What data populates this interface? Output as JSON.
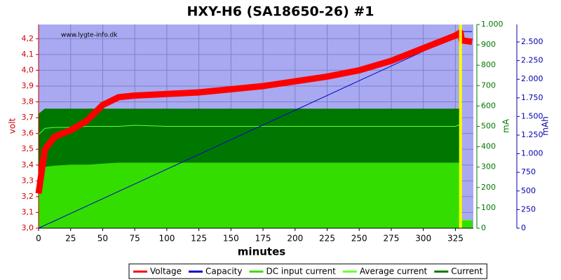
{
  "chart_data": {
    "type": "line",
    "title": "HXY-H6 (SA18650-26) #1",
    "watermark": "www.lygte-info.dk",
    "xlabel": "minutes",
    "ylabel": "volt",
    "y2label": "mA",
    "y3label": "mAh",
    "x": [
      0,
      5,
      12.5,
      25,
      37.5,
      50,
      62.5,
      75,
      100,
      125,
      150,
      175,
      200,
      225,
      250,
      275,
      300,
      325,
      329,
      330,
      338
    ],
    "series": [
      {
        "name": "Current",
        "color": "#007700",
        "axis": "y2",
        "style": "area",
        "values": [
          560,
          585,
          585,
          585,
          585,
          585,
          585,
          585,
          585,
          585,
          585,
          585,
          585,
          585,
          585,
          585,
          585,
          585,
          585,
          30,
          30
        ]
      },
      {
        "name": "DC input current",
        "color": "#33dd00",
        "axis": "y2",
        "style": "area",
        "values": [
          250,
          300,
          305,
          310,
          310,
          315,
          320,
          320,
          320,
          320,
          320,
          320,
          320,
          320,
          320,
          320,
          320,
          320,
          320,
          40,
          40
        ]
      },
      {
        "name": "Average current",
        "color": "#66ff33",
        "axis": "y2",
        "style": "line",
        "values": [
          460,
          490,
          495,
          495,
          500,
          500,
          500,
          505,
          500,
          500,
          500,
          500,
          500,
          500,
          500,
          500,
          500,
          500,
          510,
          40,
          40
        ]
      },
      {
        "name": "Capacity",
        "color": "#0000cc",
        "axis": "y3",
        "style": "line",
        "values": [
          0,
          40,
          99,
          198,
          297,
          396,
          495,
          594,
          792,
          990,
          1188,
          1386,
          1584,
          1782,
          1980,
          2178,
          2376,
          2574,
          2605,
          2640,
          2640
        ]
      },
      {
        "name": "Voltage",
        "color": "#ff0000",
        "axis": "y",
        "style": "thick",
        "values": [
          3.22,
          3.5,
          3.58,
          3.62,
          3.68,
          3.78,
          3.83,
          3.84,
          3.85,
          3.86,
          3.88,
          3.9,
          3.93,
          3.96,
          4.0,
          4.06,
          4.14,
          4.22,
          4.24,
          4.19,
          4.18
        ]
      }
    ],
    "legend_order": [
      4,
      3,
      1,
      2,
      0
    ],
    "vline": {
      "x": 329,
      "color": "#ffff00"
    },
    "xlim": [
      0,
      339
    ],
    "xticks": [
      0,
      25,
      50,
      75,
      100,
      125,
      150,
      175,
      200,
      225,
      250,
      275,
      300,
      325
    ],
    "ylim": [
      3.0,
      4.29
    ],
    "yticks": [
      {
        "value": 3.0,
        "label": "3,0"
      },
      {
        "value": 3.1,
        "label": "3,1"
      },
      {
        "value": 3.2,
        "label": "3,2"
      },
      {
        "value": 3.3,
        "label": "3,3"
      },
      {
        "value": 3.4,
        "label": "3,4"
      },
      {
        "value": 3.5,
        "label": "3,5"
      },
      {
        "value": 3.6,
        "label": "3,6"
      },
      {
        "value": 3.7,
        "label": "3,7"
      },
      {
        "value": 3.8,
        "label": "3,8"
      },
      {
        "value": 3.9,
        "label": "3,9"
      },
      {
        "value": 4.0,
        "label": "4,0"
      },
      {
        "value": 4.1,
        "label": "4,1"
      },
      {
        "value": 4.2,
        "label": "4,2"
      }
    ],
    "y2lim": [
      0,
      1000
    ],
    "y2ticks": [
      0,
      100,
      200,
      300,
      400,
      500,
      600,
      700,
      800,
      900,
      {
        "value": 1000,
        "label": "1.000"
      }
    ],
    "y3lim": [
      0,
      2735
    ],
    "y3ticks": [
      0,
      250,
      500,
      750,
      {
        "value": 1000,
        "label": "1.000"
      },
      {
        "value": 1250,
        "label": "1.250"
      },
      {
        "value": 1500,
        "label": "1.500"
      },
      {
        "value": 1750,
        "label": "1.750"
      },
      {
        "value": 2000,
        "label": "2.000"
      },
      {
        "value": 2250,
        "label": "2.250"
      },
      {
        "value": 2500,
        "label": "2.500"
      }
    ],
    "grid": true
  }
}
